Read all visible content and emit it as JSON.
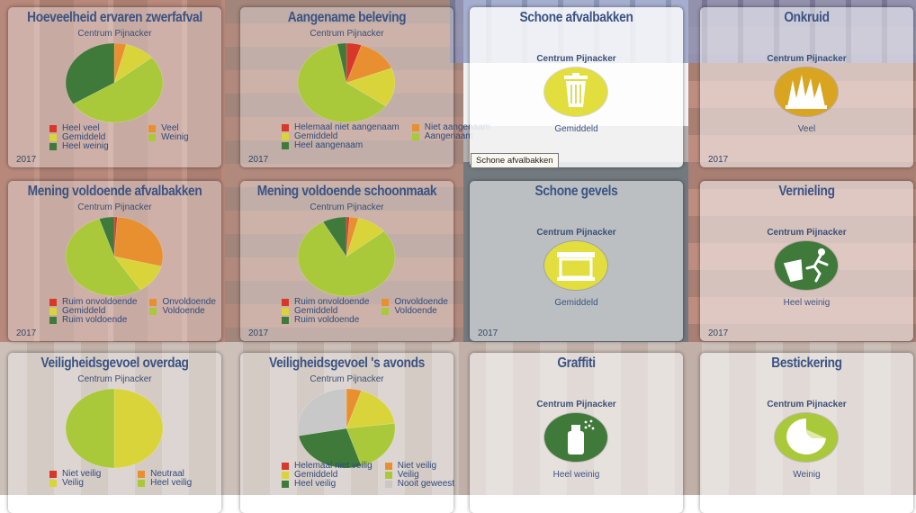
{
  "colors": {
    "red": "#d8382a",
    "orange": "#e8902f",
    "yellow": "#d9d43a",
    "yellowgreen": "#a9c93a",
    "darkgreen": "#3f7a3a",
    "grey": "#c8c8c8"
  },
  "tiles": [
    {
      "title": "Hoeveelheid ervaren zwerfafval",
      "subtitle": "Centrum Pijnacker",
      "year": "2017",
      "pie": [
        {
          "value": 4,
          "color": "orange"
        },
        {
          "value": 10,
          "color": "yellow"
        },
        {
          "value": 52,
          "color": "yellowgreen"
        },
        {
          "value": 34,
          "color": "darkgreen"
        }
      ],
      "legend": [
        {
          "label": "Heel veel",
          "color": "red"
        },
        {
          "label": "Veel",
          "color": "orange"
        },
        {
          "label": "Gemiddeld",
          "color": "yellow"
        },
        {
          "label": "Weinig",
          "color": "yellowgreen"
        },
        {
          "label": "Heel weinig",
          "color": "darkgreen"
        }
      ]
    },
    {
      "title": "Aangename beleving",
      "subtitle": "Centrum Pijnacker",
      "year": "2017",
      "pie": [
        {
          "value": 5,
          "color": "red"
        },
        {
          "value": 14,
          "color": "orange"
        },
        {
          "value": 16,
          "color": "yellow"
        },
        {
          "value": 62,
          "color": "yellowgreen"
        },
        {
          "value": 3,
          "color": "darkgreen"
        }
      ],
      "legend": [
        {
          "label": "Helemaal niet aangenaam",
          "color": "red"
        },
        {
          "label": "Niet aangenaam",
          "color": "orange"
        },
        {
          "label": "Gemiddeld",
          "color": "yellow"
        },
        {
          "label": "Aangenaam",
          "color": "yellowgreen"
        },
        {
          "label": "Heel aangenaam",
          "color": "darkgreen"
        }
      ]
    },
    {
      "title": "Schone afvalbakken",
      "subtitle": "Centrum Pijnacker",
      "icon": "trash-bin-icon",
      "badge_color": "#e2de3e",
      "verdict": "Gemiddeld"
    },
    {
      "title": "Onkruid",
      "subtitle": "Centrum Pijnacker",
      "icon": "weed-icon",
      "badge_color": "#d9a521",
      "verdict": "Veel",
      "year": "2017"
    },
    {
      "title": "Mening voldoende afvalbakken",
      "subtitle": "Centrum Pijnacker",
      "year": "2017",
      "pie": [
        {
          "value": 1,
          "color": "red"
        },
        {
          "value": 28,
          "color": "orange"
        },
        {
          "value": 12,
          "color": "yellow"
        },
        {
          "value": 54,
          "color": "yellowgreen"
        },
        {
          "value": 5,
          "color": "darkgreen"
        }
      ],
      "legend": [
        {
          "label": "Ruim onvoldoende",
          "color": "red"
        },
        {
          "label": "Onvoldoende",
          "color": "orange"
        },
        {
          "label": "Gemiddeld",
          "color": "yellow"
        },
        {
          "label": "Voldoende",
          "color": "yellowgreen"
        },
        {
          "label": "Ruim voldoende",
          "color": "darkgreen"
        }
      ]
    },
    {
      "title": "Mening voldoende schoonmaak",
      "subtitle": "Centrum Pijnacker",
      "year": "2017",
      "pie": [
        {
          "value": 1,
          "color": "red"
        },
        {
          "value": 3,
          "color": "orange"
        },
        {
          "value": 10,
          "color": "yellow"
        },
        {
          "value": 78,
          "color": "yellowgreen"
        },
        {
          "value": 8,
          "color": "darkgreen"
        }
      ],
      "legend": [
        {
          "label": "Ruim onvoldoende",
          "color": "red"
        },
        {
          "label": "Onvoldoende",
          "color": "orange"
        },
        {
          "label": "Gemiddeld",
          "color": "yellow"
        },
        {
          "label": "Voldoende",
          "color": "yellowgreen"
        },
        {
          "label": "Ruim voldoende",
          "color": "darkgreen"
        }
      ]
    },
    {
      "title": "Schone gevels",
      "subtitle": "Centrum Pijnacker",
      "icon": "facade-icon",
      "badge_color": "#e2de3e",
      "verdict": "Gemiddeld",
      "year": "2017"
    },
    {
      "title": "Vernieling",
      "subtitle": "Centrum Pijnacker",
      "icon": "vandalism-icon",
      "badge_color": "#3f7a3a",
      "verdict": "Heel weinig",
      "year": "2017"
    },
    {
      "title": "Veiligheidsgevoel overdag",
      "subtitle": "Centrum Pijnacker",
      "pie": [
        {
          "value": 50,
          "color": "yellow"
        },
        {
          "value": 50,
          "color": "yellowgreen"
        }
      ],
      "legend": [
        {
          "label": "Niet veilig",
          "color": "red"
        },
        {
          "label": "Neutraal",
          "color": "orange"
        },
        {
          "label": "Veilig",
          "color": "yellow"
        },
        {
          "label": "Heel veilig",
          "color": "yellowgreen"
        }
      ]
    },
    {
      "title": "Veiligheidsgevoel 's avonds",
      "subtitle": "Centrum Pijnacker",
      "pie": [
        {
          "value": 5,
          "color": "orange"
        },
        {
          "value": 18,
          "color": "yellow"
        },
        {
          "value": 22,
          "color": "yellowgreen"
        },
        {
          "value": 27,
          "color": "darkgreen"
        },
        {
          "value": 28,
          "color": "grey"
        }
      ],
      "legend": [
        {
          "label": "Helemaal niet veilig",
          "color": "red"
        },
        {
          "label": "Niet veilig",
          "color": "orange"
        },
        {
          "label": "Gemiddeld",
          "color": "yellow"
        },
        {
          "label": "Veilig",
          "color": "yellowgreen"
        },
        {
          "label": "Heel veilig",
          "color": "darkgreen"
        },
        {
          "label": "Nooit geweest",
          "color": "grey"
        }
      ]
    },
    {
      "title": "Graffiti",
      "subtitle": "Centrum Pijnacker",
      "icon": "spray-can-icon",
      "badge_color": "#3f7a3a",
      "verdict": "Heel weinig"
    },
    {
      "title": "Bestickering",
      "subtitle": "Centrum Pijnacker",
      "icon": "sticker-icon",
      "badge_color": "#a9c93a",
      "verdict": "Weinig"
    }
  ],
  "tooltip": "Schone afvalbakken"
}
